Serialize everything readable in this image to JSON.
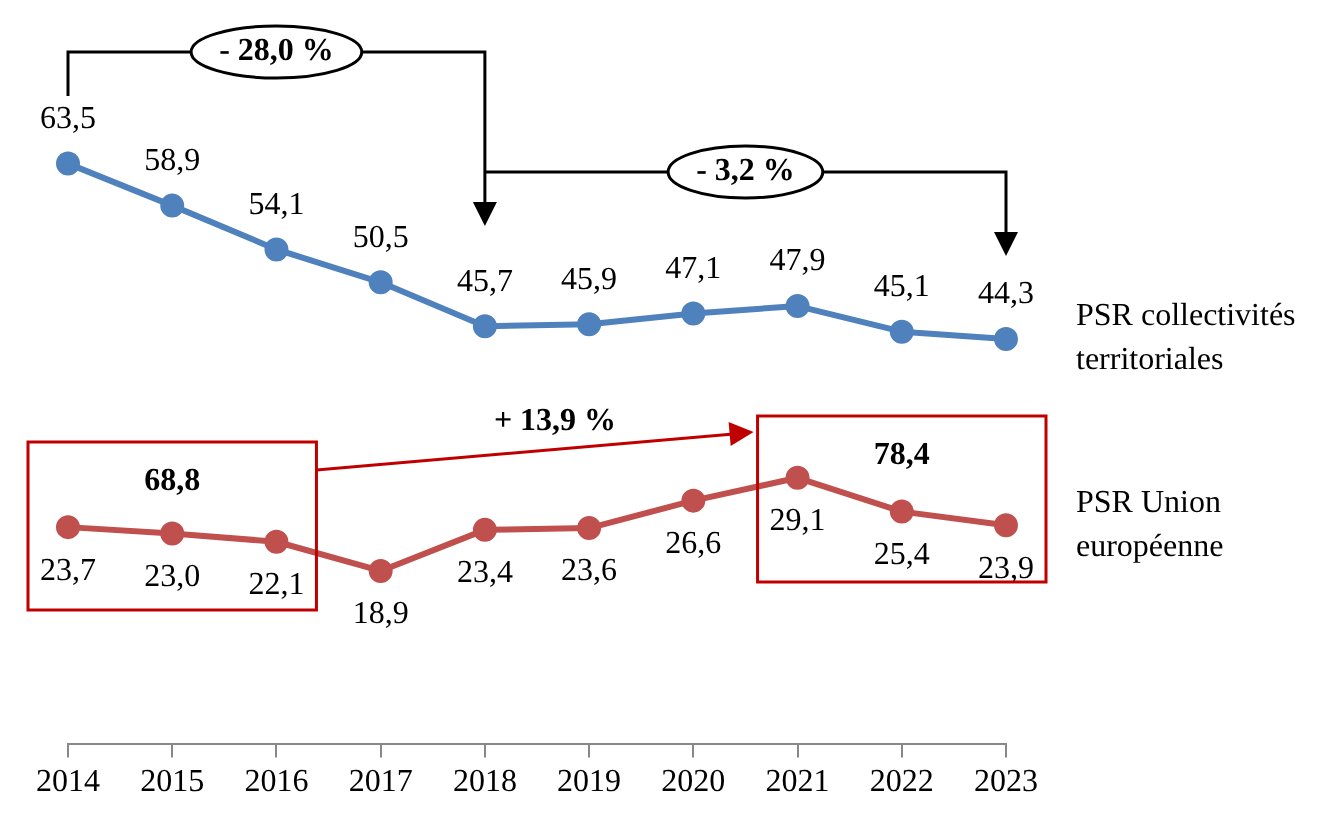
{
  "chart_data": {
    "type": "line",
    "tick_labels": "x",
    "marker": "circle",
    "line_style": "solid",
    "categories": [
      "2014",
      "2015",
      "2016",
      "2017",
      "2018",
      "2019",
      "2020",
      "2021",
      "2022",
      "2023"
    ],
    "series": [
      {
        "name": "PSR collectivités territoriales",
        "color": "#4f81bd",
        "values": [
          63.5,
          58.9,
          54.1,
          50.5,
          45.7,
          45.9,
          47.1,
          47.9,
          45.1,
          44.3
        ],
        "value_labels": [
          "63,5",
          "58,9",
          "54,1",
          "50,5",
          "45,7",
          "45,9",
          "47,1",
          "47,9",
          "45,1",
          "44,3"
        ]
      },
      {
        "name": "PSR Union européenne",
        "color": "#c0504d",
        "values": [
          23.7,
          23.0,
          22.1,
          18.9,
          23.4,
          23.6,
          26.6,
          29.1,
          25.4,
          23.9
        ],
        "value_labels": [
          "23,7",
          "23,0",
          "22,1",
          "18,9",
          "23,4",
          "23,6",
          "26,6",
          "29,1",
          "25,4",
          "23,9"
        ]
      }
    ],
    "annotations": [
      "- 28,0 %",
      "- 3,2 %",
      "+ 13,9 %",
      "68,8",
      "78,4"
    ]
  }
}
